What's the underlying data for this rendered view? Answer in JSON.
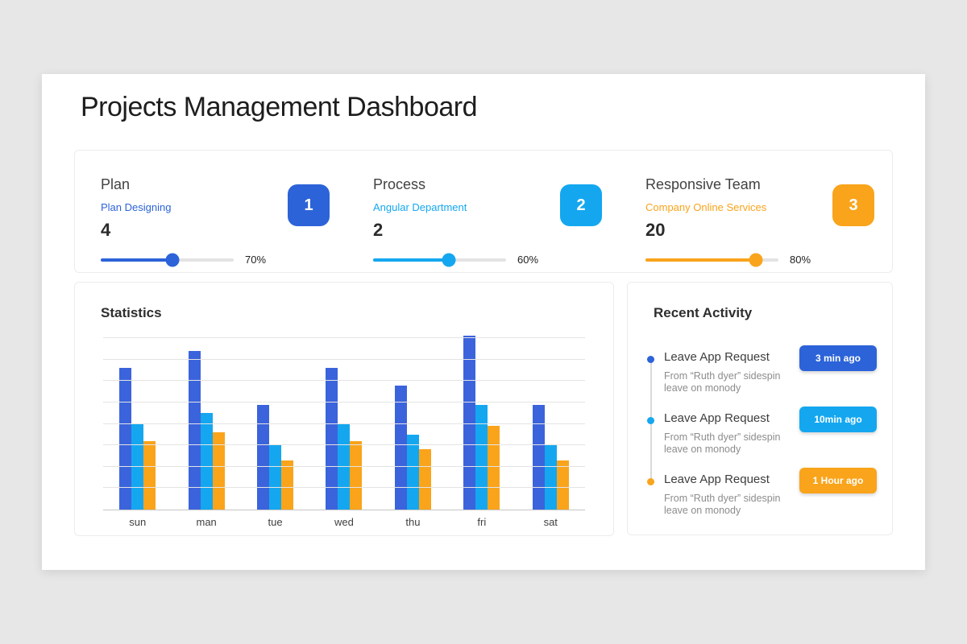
{
  "page": {
    "title": "Projects Management Dashboard"
  },
  "summary": {
    "cards": [
      {
        "title": "Plan",
        "subtitle": "Plan Designing",
        "value": "4",
        "percent_label": "70%",
        "badge": "1",
        "accent": "#2c63d8",
        "fill_pct": 54
      },
      {
        "title": "Process",
        "subtitle": "Angular Department",
        "value": "2",
        "percent_label": "60%",
        "badge": "2",
        "accent": "#14a7f0",
        "fill_pct": 57
      },
      {
        "title": "Responsive Team",
        "subtitle": "Company Online Services",
        "value": "20",
        "percent_label": "80%",
        "badge": "3",
        "accent": "#f9a41b",
        "fill_pct": 83
      }
    ]
  },
  "statistics": {
    "title": "Statistics"
  },
  "chart_data": {
    "type": "bar",
    "title": "Statistics",
    "categories": [
      "sun",
      "man",
      "tue",
      "wed",
      "thu",
      "fri",
      "sat"
    ],
    "series": [
      {
        "name": "series-dark-blue",
        "color": "#3b63dc",
        "values": [
          66,
          74,
          49,
          66,
          58,
          81,
          49
        ]
      },
      {
        "name": "series-light-blue",
        "color": "#14a7f0",
        "values": [
          40,
          45,
          30,
          40,
          35,
          49,
          30
        ]
      },
      {
        "name": "series-orange",
        "color": "#f9a41b",
        "values": [
          32,
          36,
          23,
          32,
          28,
          39,
          23
        ]
      }
    ],
    "xlabel": "",
    "ylabel": "",
    "ylim": [
      0,
      80
    ],
    "gridline_step": 10,
    "grid": true,
    "legend": false
  },
  "recent_activity": {
    "title": "Recent Activity",
    "items": [
      {
        "title": "Leave App Request",
        "description_line1": "From “Ruth dyer” sidespin",
        "description_line2": "leave on monody",
        "time": "3 min ago",
        "accent": "#2c63d8"
      },
      {
        "title": "Leave App Request",
        "description_line1": "From “Ruth dyer” sidespin",
        "description_line2": "leave on monody",
        "time": "10min ago",
        "accent": "#14a7f0"
      },
      {
        "title": "Leave App Request",
        "description_line1": "From “Ruth dyer” sidespin",
        "description_line2": "leave on monody",
        "time": "1 Hour ago",
        "accent": "#f9a41b"
      }
    ]
  }
}
